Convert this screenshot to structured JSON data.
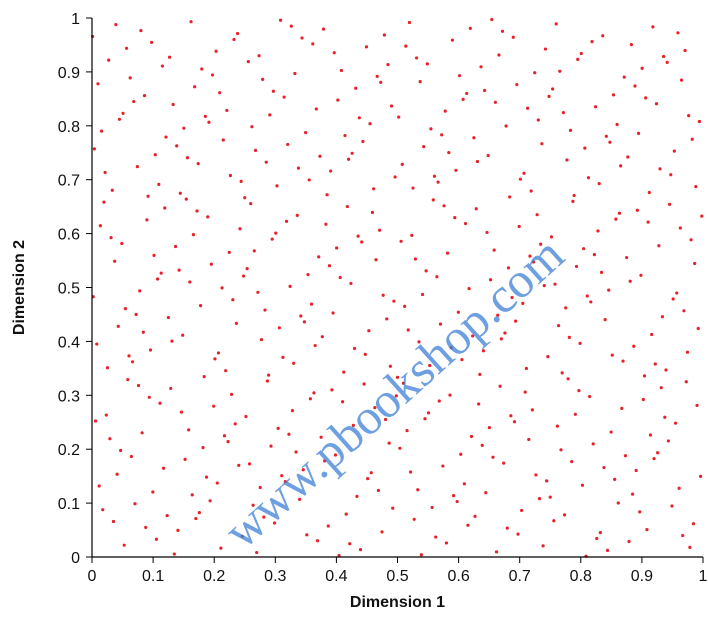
{
  "chart_data": {
    "type": "scatter",
    "title": "",
    "xlabel": "Dimension 1",
    "ylabel": "Dimension 2",
    "xlim": [
      0,
      1
    ],
    "ylim": [
      0,
      1
    ],
    "xticks": [
      "0",
      "0.1",
      "0.2",
      "0.3",
      "0.4",
      "0.5",
      "0.6",
      "0.7",
      "0.8",
      "0.9",
      "1"
    ],
    "yticks": [
      "0",
      "0.1",
      "0.2",
      "0.3",
      "0.4",
      "0.5",
      "0.6",
      "0.7",
      "0.8",
      "0.9",
      "1"
    ],
    "grid": false,
    "legend": "none",
    "marker_color": "#e8202a",
    "n_points": 512,
    "point_pattern": "quasi-random low-discrepancy sequence filling the unit square (~512 points)"
  },
  "watermark": {
    "text": "www.pbookshop.com",
    "color": "#3e7fd6"
  }
}
